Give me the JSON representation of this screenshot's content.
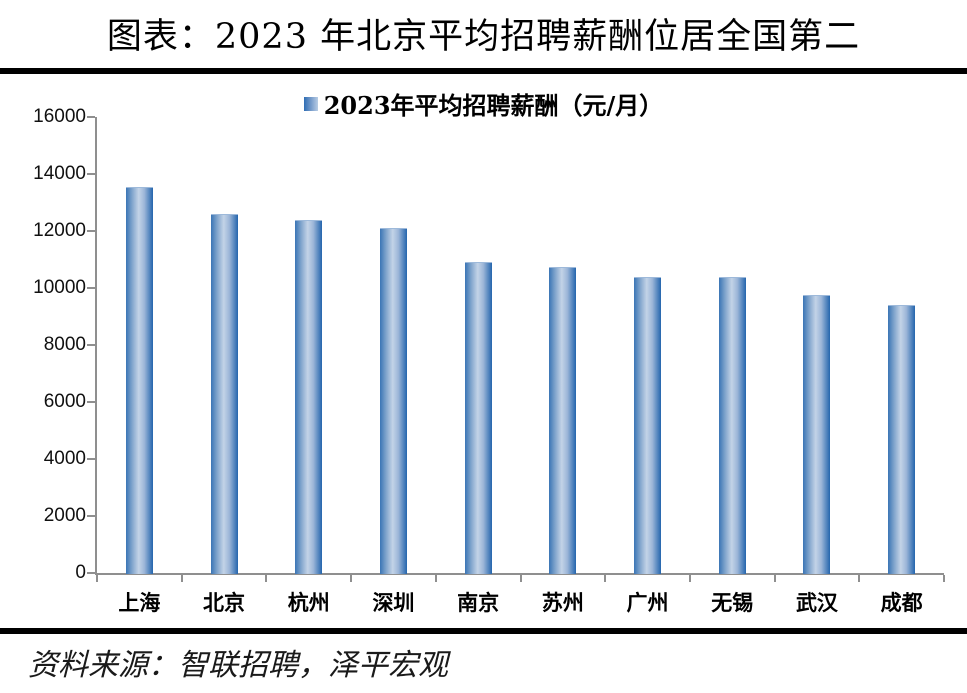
{
  "header": {
    "title": "图表：2023 年北京平均招聘薪酬位居全国第二"
  },
  "legend": {
    "label": "2023年平均招聘薪酬（元/月）",
    "marker_color_dark": "#2e6db4",
    "marker_color_light": "#b9cde5"
  },
  "source": {
    "text": "资料来源：智联招聘，泽平宏观"
  },
  "colors": {
    "bar_edge": "#2465ad",
    "bar_center": "#c3d3e7",
    "axis": "#8f8f8f",
    "rule": "#000000",
    "text": "#000000"
  },
  "chart_data": {
    "type": "bar",
    "title": "2023年平均招聘薪酬（元/月）",
    "categories": [
      "上海",
      "北京",
      "杭州",
      "深圳",
      "南京",
      "苏州",
      "广州",
      "无锡",
      "武汉",
      "成都"
    ],
    "values": [
      13550,
      12600,
      12400,
      12100,
      10900,
      10750,
      10400,
      10400,
      9750,
      9400
    ],
    "xlabel": "",
    "ylabel": "",
    "ylim": [
      0,
      16000
    ],
    "yticks": [
      0,
      2000,
      4000,
      6000,
      8000,
      10000,
      12000,
      14000,
      16000
    ],
    "grid": false,
    "legend_position": "top-center"
  }
}
